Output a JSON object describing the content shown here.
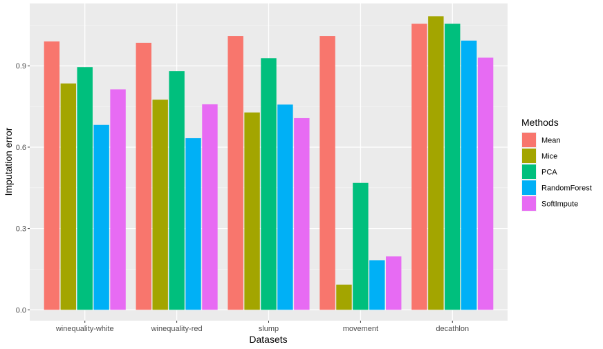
{
  "chart_data": {
    "type": "bar",
    "title": "",
    "xlabel": "Datasets",
    "ylabel": "Imputation error",
    "categories": [
      "winequality-white",
      "winequality-red",
      "slump",
      "movement",
      "decathlon"
    ],
    "ylim": [
      -0.04,
      1.13
    ],
    "yticks": [
      0.0,
      0.3,
      0.6,
      0.9
    ],
    "ytick_labels": [
      "0.0",
      "0.3",
      "0.6",
      "0.9"
    ],
    "grid": true,
    "legend_title": "Methods",
    "legend_position": "right",
    "series": [
      {
        "name": "Mean",
        "color": "#F8766D",
        "values": [
          0.99,
          0.985,
          1.01,
          1.01,
          1.055
        ]
      },
      {
        "name": "Mice",
        "color": "#A3A500",
        "values": [
          0.835,
          0.775,
          0.728,
          0.093,
          1.083
        ]
      },
      {
        "name": "PCA",
        "color": "#00BF7D",
        "values": [
          0.895,
          0.88,
          0.928,
          0.468,
          1.055
        ]
      },
      {
        "name": "RandomForest",
        "color": "#00B0F6",
        "values": [
          0.682,
          0.633,
          0.757,
          0.183,
          0.993
        ]
      },
      {
        "name": "SoftImpute",
        "color": "#E76BF3",
        "values": [
          0.813,
          0.758,
          0.707,
          0.197,
          0.93
        ]
      }
    ]
  }
}
